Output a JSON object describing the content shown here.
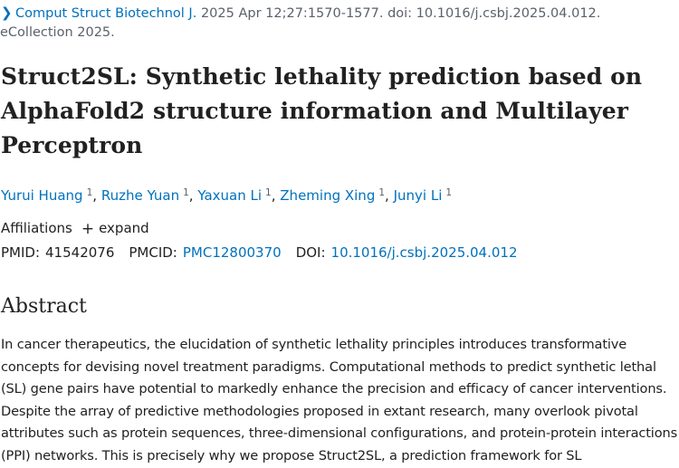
{
  "citation": {
    "journal": "Comput Struct Biotechnol J.",
    "details": "2025 Apr 12;27:1570-1577. doi: 10.1016/j.csbj.2025.04.012. eCollection 2025."
  },
  "title": "Struct2SL: Synthetic lethality prediction based on AlphaFold2 structure information and Multilayer Perceptron",
  "authors": [
    {
      "name": "Yurui Huang",
      "aff": "1"
    },
    {
      "name": "Ruzhe Yuan",
      "aff": "1"
    },
    {
      "name": "Yaxuan Li",
      "aff": "1"
    },
    {
      "name": "Zheming Xing",
      "aff": "1"
    },
    {
      "name": "Junyi Li",
      "aff": "1"
    }
  ],
  "author_separator": ",",
  "affiliations": {
    "label": "Affiliations",
    "expand_label": "expand"
  },
  "identifiers": {
    "pmid_label": "PMID:",
    "pmid": "41542076",
    "pmcid_label": "PMCID:",
    "pmcid": "PMC12800370",
    "doi_label": "DOI:",
    "doi": "10.1016/j.csbj.2025.04.012"
  },
  "abstract": {
    "heading": "Abstract",
    "text": "In cancer therapeutics, the elucidation of synthetic lethality principles introduces transformative concepts for devising novel treatment paradigms. Computational methods to predict synthetic lethal (SL) gene pairs have potential to markedly enhance the precision and efficacy of cancer interventions. Despite the array of predictive methodologies proposed in extant research, many overlook pivotal attributes such as protein sequences, three-dimensional configurations, and protein-protein interactions (PPI) networks. This is precisely why we propose Struct2SL, a prediction framework for SL"
  },
  "icons": {
    "citation_chevron": "chevron-right-icon",
    "affiliations_expand": "plus-icon"
  },
  "colors": {
    "link": "#0071bc",
    "text": "#212121",
    "muted": "#5b616b"
  }
}
